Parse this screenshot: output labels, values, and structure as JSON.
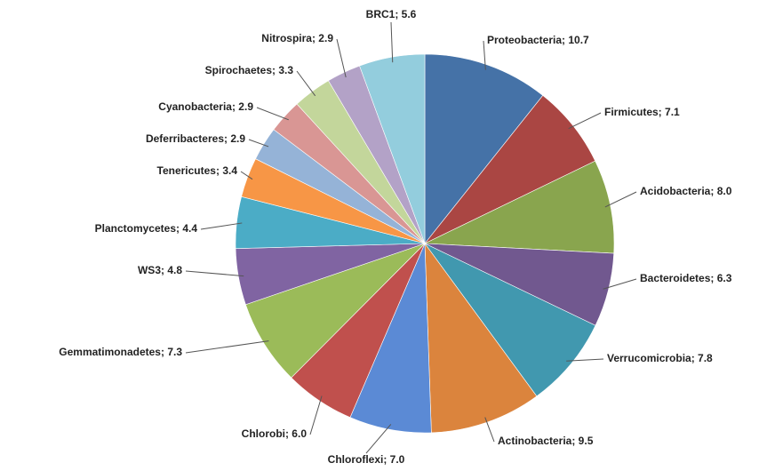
{
  "chart_data": {
    "type": "pie",
    "values": [
      10.7,
      7.1,
      8.0,
      6.3,
      7.8,
      9.5,
      7.0,
      6.0,
      7.3,
      4.8,
      4.4,
      3.4,
      2.9,
      2.9,
      3.3,
      2.9,
      5.6
    ],
    "value_labels": [
      "Proteobacteria; 10.7",
      "Firmicutes; 7.1",
      "Acidobacteria; 8.0",
      "Bacteroidetes; 6.3",
      "Verrucomicrobia; 7.8",
      "Actinobacteria; 9.5",
      "Chloroflexi; 7.0",
      "Chlorobi; 6.0",
      "Gemmatimonadetes; 7.3",
      "WS3; 4.8",
      "Planctomycetes; 4.4",
      "Tenericutes; 3.4",
      "Deferribacteres; 2.9",
      "Cyanobacteria; 2.9",
      "Spirochaetes; 3.3",
      "Nitrospira; 2.9",
      "BRC1; 5.6"
    ],
    "colors": [
      "#4572a7",
      "#aa4643",
      "#89a54e",
      "#71588f",
      "#4198af",
      "#db843d",
      "#5b8ad5",
      "#c0504d",
      "#9bbb59",
      "#8064a2",
      "#4bacc6",
      "#f79646",
      "#95b3d7",
      "#d99694",
      "#c3d69b",
      "#b3a2c7",
      "#93cddd"
    ]
  }
}
